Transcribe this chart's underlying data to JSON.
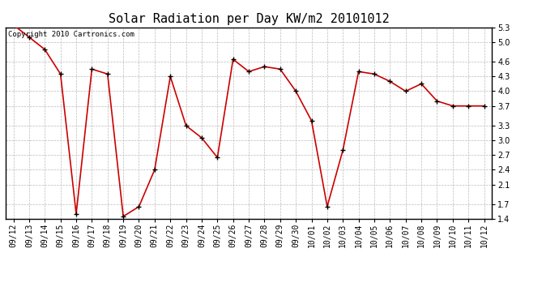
{
  "title": "Solar Radiation per Day KW/m2 20101012",
  "copyright_text": "Copyright 2010 Cartronics.com",
  "labels": [
    "09/12",
    "09/13",
    "09/14",
    "09/15",
    "09/16",
    "09/17",
    "09/18",
    "09/19",
    "09/20",
    "09/21",
    "09/22",
    "09/23",
    "09/24",
    "09/25",
    "09/26",
    "09/27",
    "09/28",
    "09/29",
    "09/30",
    "10/01",
    "10/02",
    "10/03",
    "10/04",
    "10/05",
    "10/06",
    "10/07",
    "10/08",
    "10/09",
    "10/10",
    "10/11",
    "10/12"
  ],
  "values": [
    5.35,
    5.1,
    4.85,
    4.35,
    1.5,
    4.45,
    4.35,
    1.45,
    1.65,
    2.4,
    4.3,
    3.3,
    3.05,
    2.65,
    4.65,
    4.4,
    4.5,
    4.45,
    4.0,
    3.4,
    1.65,
    2.8,
    4.4,
    4.35,
    4.2,
    4.0,
    4.15,
    3.8,
    3.7,
    3.7,
    3.7
  ],
  "line_color": "#cc0000",
  "marker_color": "#000000",
  "bg_color": "#ffffff",
  "plot_bg_color": "#ffffff",
  "grid_color": "#bbbbbb",
  "ylim": [
    1.4,
    5.3
  ],
  "yticks": [
    1.4,
    1.7,
    2.1,
    2.4,
    2.7,
    3.0,
    3.3,
    3.7,
    4.0,
    4.3,
    4.6,
    5.0,
    5.3
  ],
  "title_fontsize": 11,
  "tick_fontsize": 7,
  "copyright_fontsize": 6.5
}
